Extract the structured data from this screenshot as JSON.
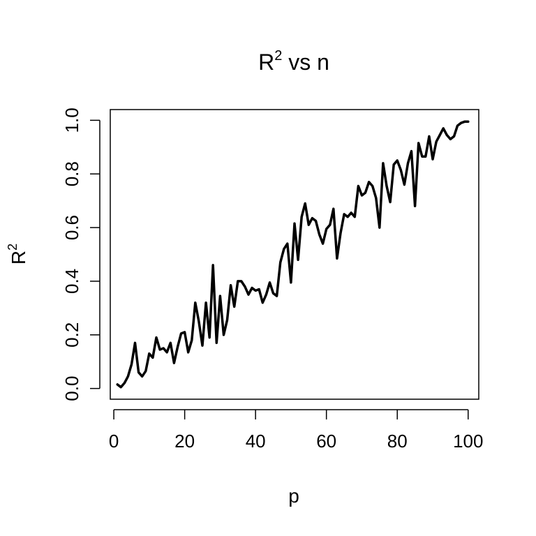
{
  "chart_data": {
    "type": "line",
    "title": {
      "text": "R",
      "sup": "2",
      "rest": " vs n"
    },
    "xlabel": "p",
    "ylabel": {
      "text": "R",
      "sup": "2"
    },
    "xlim": [
      1,
      100
    ],
    "ylim": [
      0,
      1
    ],
    "x_ticks": [
      0,
      20,
      40,
      60,
      80,
      100
    ],
    "y_ticks": [
      0.0,
      0.2,
      0.4,
      0.6,
      0.8,
      1.0
    ],
    "x_tick_labels": [
      "0",
      "20",
      "40",
      "60",
      "80",
      "100"
    ],
    "y_tick_labels": [
      "0.0",
      "0.2",
      "0.4",
      "0.6",
      "0.8",
      "1.0"
    ],
    "grid": false,
    "series": [
      {
        "color": "#000000",
        "x": [
          1,
          2,
          3,
          4,
          5,
          6,
          7,
          8,
          9,
          10,
          11,
          12,
          13,
          14,
          15,
          16,
          17,
          18,
          19,
          20,
          21,
          22,
          23,
          24,
          25,
          26,
          27,
          28,
          29,
          30,
          31,
          32,
          33,
          34,
          35,
          36,
          37,
          38,
          39,
          40,
          41,
          42,
          43,
          44,
          45,
          46,
          47,
          48,
          49,
          50,
          51,
          52,
          53,
          54,
          55,
          56,
          57,
          58,
          59,
          60,
          61,
          62,
          63,
          64,
          65,
          66,
          67,
          68,
          69,
          70,
          71,
          72,
          73,
          74,
          75,
          76,
          77,
          78,
          79,
          80,
          81,
          82,
          83,
          84,
          85,
          86,
          87,
          88,
          89,
          90,
          91,
          92,
          93,
          94,
          95,
          96,
          97,
          98,
          99,
          100
        ],
        "y": [
          0.015,
          0.005,
          0.02,
          0.045,
          0.09,
          0.17,
          0.06,
          0.045,
          0.065,
          0.13,
          0.115,
          0.19,
          0.145,
          0.15,
          0.135,
          0.17,
          0.095,
          0.155,
          0.205,
          0.21,
          0.135,
          0.18,
          0.32,
          0.25,
          0.16,
          0.32,
          0.19,
          0.46,
          0.17,
          0.345,
          0.2,
          0.255,
          0.385,
          0.305,
          0.4,
          0.4,
          0.38,
          0.35,
          0.375,
          0.365,
          0.37,
          0.32,
          0.35,
          0.395,
          0.355,
          0.345,
          0.47,
          0.52,
          0.54,
          0.395,
          0.615,
          0.48,
          0.64,
          0.69,
          0.61,
          0.635,
          0.625,
          0.575,
          0.54,
          0.595,
          0.61,
          0.67,
          0.485,
          0.58,
          0.65,
          0.64,
          0.655,
          0.64,
          0.755,
          0.72,
          0.73,
          0.77,
          0.755,
          0.71,
          0.6,
          0.84,
          0.755,
          0.695,
          0.835,
          0.85,
          0.815,
          0.76,
          0.84,
          0.885,
          0.68,
          0.915,
          0.865,
          0.865,
          0.94,
          0.855,
          0.92,
          0.945,
          0.97,
          0.945,
          0.93,
          0.94,
          0.98,
          0.99,
          0.995,
          0.995
        ]
      }
    ]
  }
}
